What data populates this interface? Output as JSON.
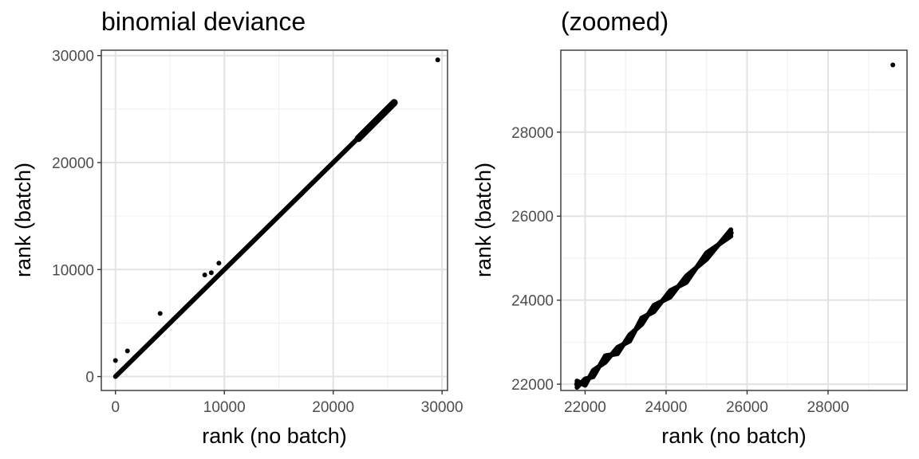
{
  "chart_data": [
    {
      "type": "scatter",
      "title": "binomial deviance",
      "xlabel": "rank (no batch)",
      "ylabel": "rank (batch)",
      "xlim": [
        -1300,
        30500
      ],
      "ylim": [
        -1300,
        30500
      ],
      "x_ticks": [
        0,
        10000,
        20000,
        30000
      ],
      "x_tick_labels": [
        "0",
        "10000",
        "20000",
        "30000"
      ],
      "y_ticks": [
        0,
        10000,
        20000,
        30000
      ],
      "y_tick_labels": [
        "0",
        "10000",
        "20000",
        "30000"
      ],
      "grid": true,
      "band": {
        "x": [
          0,
          25600
        ],
        "y": [
          0,
          25600
        ]
      },
      "points": [
        {
          "x": 29600,
          "y": 29600
        },
        {
          "x": 0,
          "y": 1500
        },
        {
          "x": 1100,
          "y": 2400
        },
        {
          "x": 4100,
          "y": 5900
        },
        {
          "x": 9500,
          "y": 10600
        },
        {
          "x": 8200,
          "y": 9500
        },
        {
          "x": 8800,
          "y": 9700
        }
      ]
    },
    {
      "type": "scatter",
      "title": "(zoomed)",
      "xlabel": "rank (no batch)",
      "ylabel": "rank (batch)",
      "xlim": [
        21400,
        29950
      ],
      "ylim": [
        21850,
        29950
      ],
      "x_ticks": [
        22000,
        24000,
        26000,
        28000
      ],
      "x_tick_labels": [
        "22000",
        "24000",
        "26000",
        "28000"
      ],
      "y_ticks": [
        22000,
        24000,
        26000,
        28000
      ],
      "y_tick_labels": [
        "22000",
        "24000",
        "26000",
        "28000"
      ],
      "grid": true,
      "curve": [
        {
          "x": 21800,
          "y": 22000
        },
        {
          "x": 22000,
          "y": 22050
        },
        {
          "x": 22200,
          "y": 22250
        },
        {
          "x": 22500,
          "y": 22600
        },
        {
          "x": 22800,
          "y": 22800
        },
        {
          "x": 23100,
          "y": 23100
        },
        {
          "x": 23400,
          "y": 23500
        },
        {
          "x": 23700,
          "y": 23800
        },
        {
          "x": 24100,
          "y": 24150
        },
        {
          "x": 24500,
          "y": 24500
        },
        {
          "x": 25000,
          "y": 25050
        },
        {
          "x": 25600,
          "y": 25600
        }
      ],
      "points": [
        {
          "x": 29600,
          "y": 29600
        }
      ]
    }
  ]
}
